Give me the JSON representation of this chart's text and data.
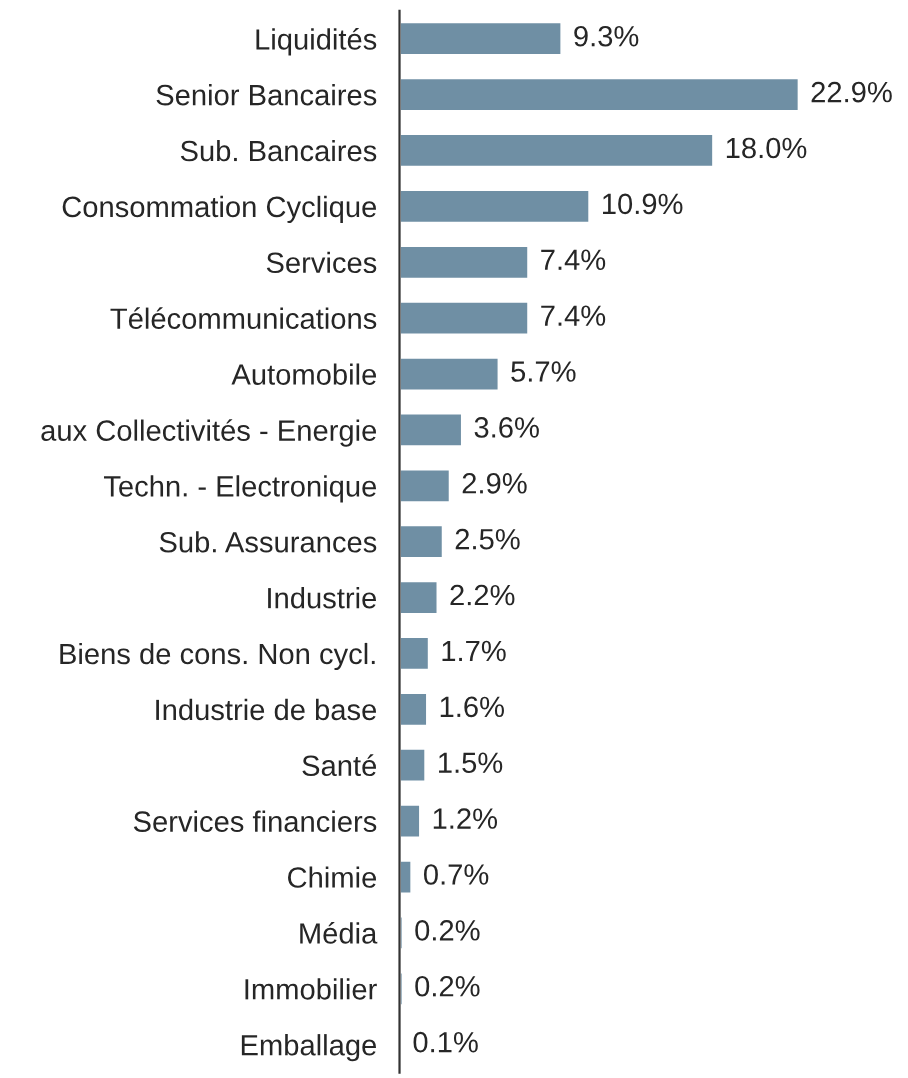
{
  "chart_data": {
    "type": "bar",
    "orientation": "horizontal",
    "categories": [
      "Liquidités",
      "Senior Bancaires",
      "Sub. Bancaires",
      "Consommation Cyclique",
      "Services",
      "Télécommunications",
      "Automobile",
      "aux Collectivités - Energie",
      "Techn. - Electronique",
      "Sub. Assurances",
      "Industrie",
      "Biens de cons. Non cycl.",
      "Industrie de base",
      "Santé",
      "Services financiers",
      "Chimie",
      "Média",
      "Immobilier",
      "Emballage"
    ],
    "values": [
      9.3,
      22.9,
      18.0,
      10.9,
      7.4,
      7.4,
      5.7,
      3.6,
      2.9,
      2.5,
      2.2,
      1.7,
      1.6,
      1.5,
      1.2,
      0.7,
      0.2,
      0.2,
      0.1
    ],
    "value_labels": [
      "9.3%",
      "22.9%",
      "18.0%",
      "10.9%",
      "7.4%",
      "7.4%",
      "5.7%",
      "3.6%",
      "2.9%",
      "2.5%",
      "2.2%",
      "1.7%",
      "1.6%",
      "1.5%",
      "1.2%",
      "0.7%",
      "0.2%",
      "0.2%",
      "0.1%"
    ],
    "color": "#6f8fa4",
    "grid": false,
    "legend": false
  }
}
